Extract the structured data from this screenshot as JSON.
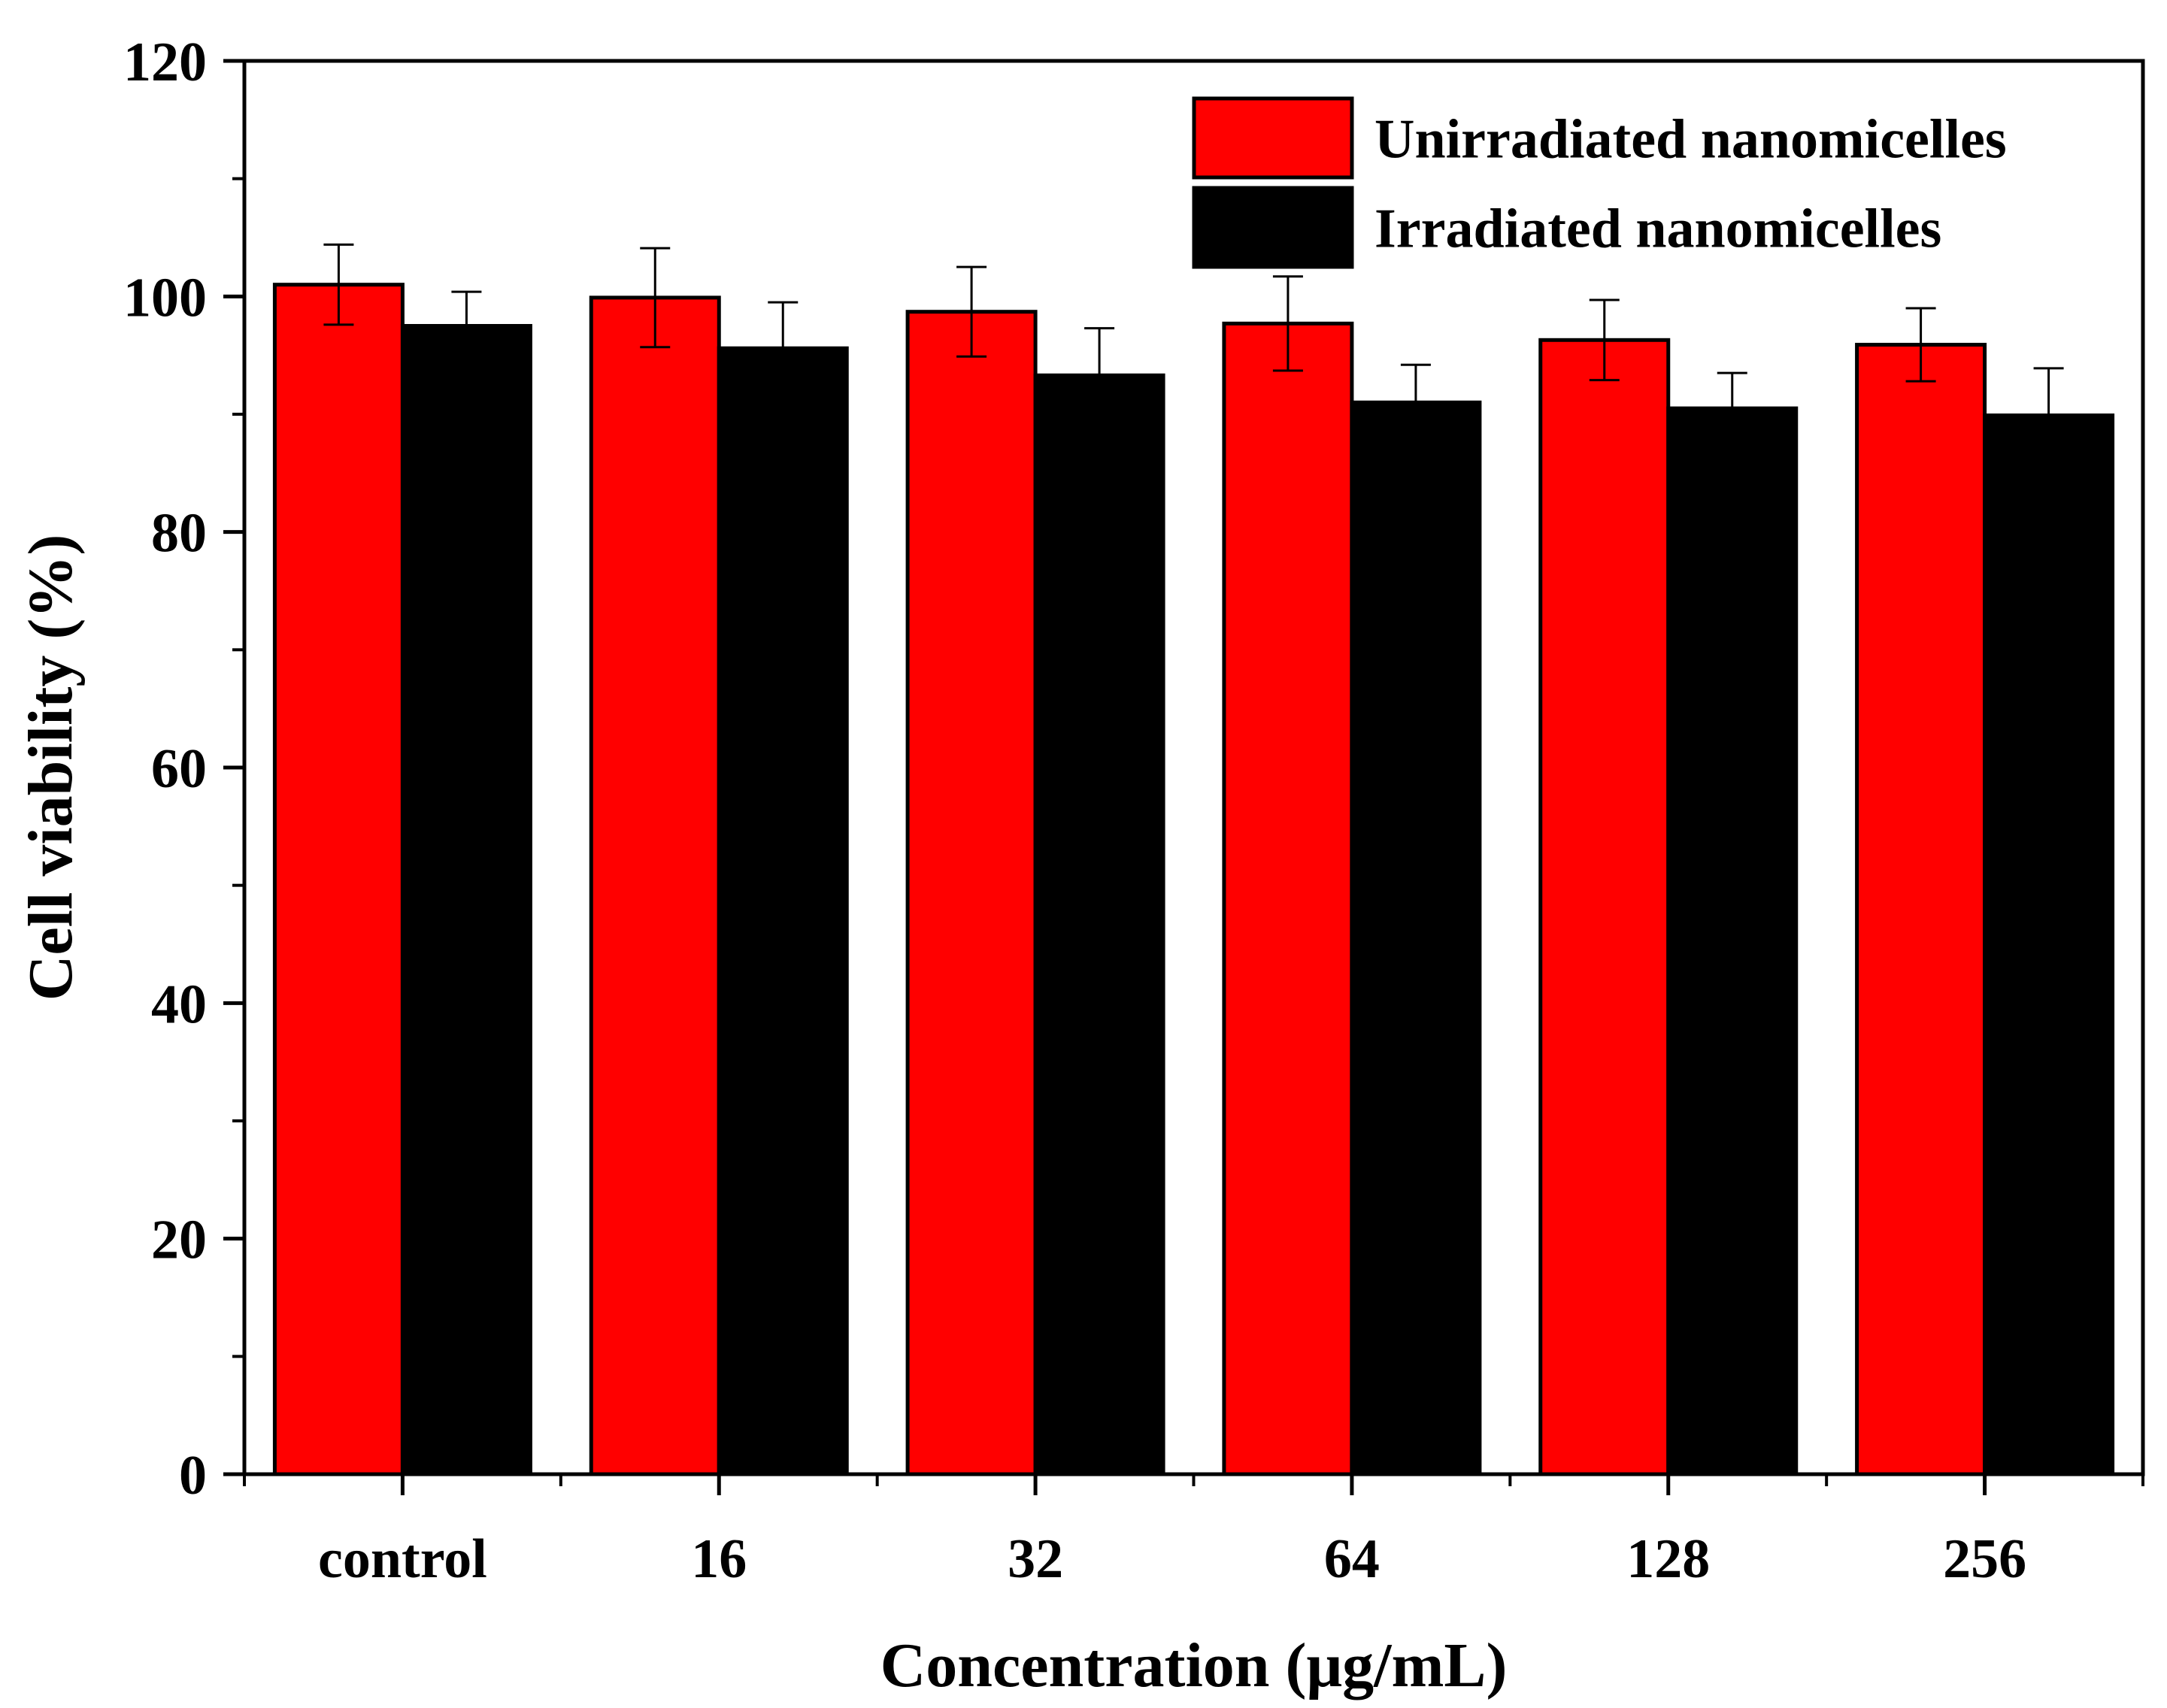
{
  "chart_data": {
    "type": "bar",
    "xlabel": "Concentration (μg/mL)",
    "ylabel": "Cell viability (%)",
    "categories": [
      "control",
      "16",
      "32",
      "64",
      "128",
      "256"
    ],
    "ylim": [
      0,
      120
    ],
    "yticks": [
      0,
      20,
      40,
      60,
      80,
      100,
      120
    ],
    "grid": false,
    "legend_position": "top-right",
    "series": [
      {
        "name": "Unirradiated nanomicelles",
        "color": "#ff0000",
        "values": [
          101.0,
          99.9,
          98.7,
          97.7,
          96.3,
          95.9
        ],
        "errors": [
          3.4,
          4.2,
          3.8,
          4.0,
          3.4,
          3.1
        ]
      },
      {
        "name": "Irradiated nanomicelles",
        "color": "#000000",
        "values": [
          97.5,
          95.6,
          93.3,
          91.0,
          90.5,
          89.9
        ],
        "errors": [
          2.9,
          3.9,
          4.0,
          3.2,
          3.0,
          4.0
        ]
      }
    ]
  }
}
